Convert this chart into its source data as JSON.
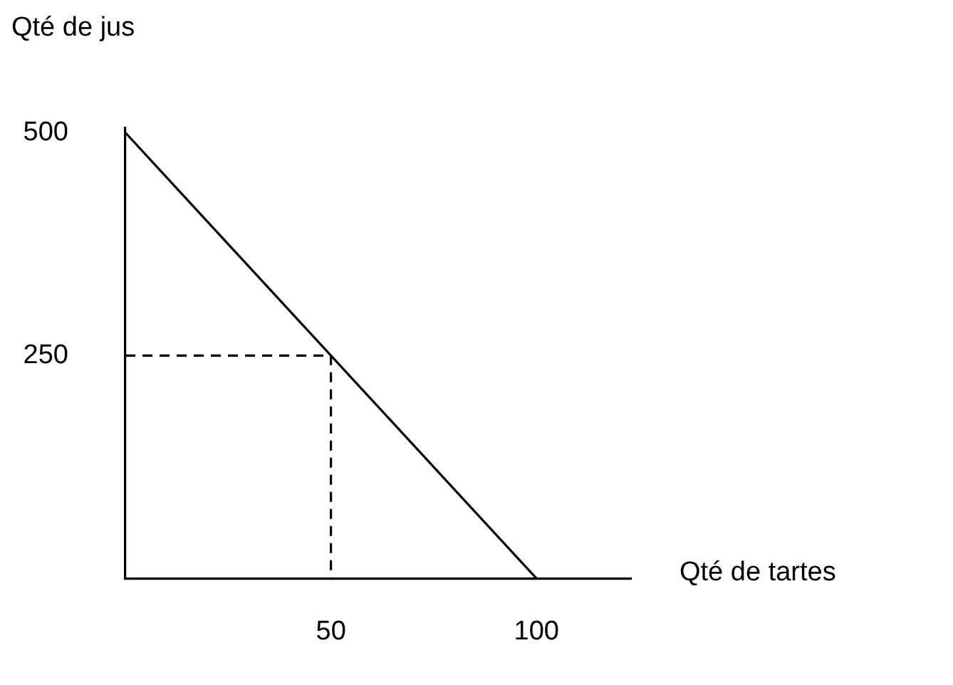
{
  "chart_data": {
    "type": "line",
    "xlabel": "Qté de tartes",
    "ylabel": "Qté de jus",
    "xlim": [
      0,
      123
    ],
    "xticks": [
      50,
      100
    ],
    "ylim": [
      0,
      505
    ],
    "yticks": [
      250,
      500
    ],
    "grid": false,
    "legend": false,
    "marker": "none",
    "series": [
      {
        "color": "#000000",
        "x": [
          0,
          100
        ],
        "values": [
          500,
          0
        ],
        "line_style": "solid"
      },
      {
        "color": "#000000",
        "x": [
          0,
          50,
          50
        ],
        "values": [
          250,
          250,
          0
        ],
        "line_style": "dashed"
      }
    ]
  }
}
